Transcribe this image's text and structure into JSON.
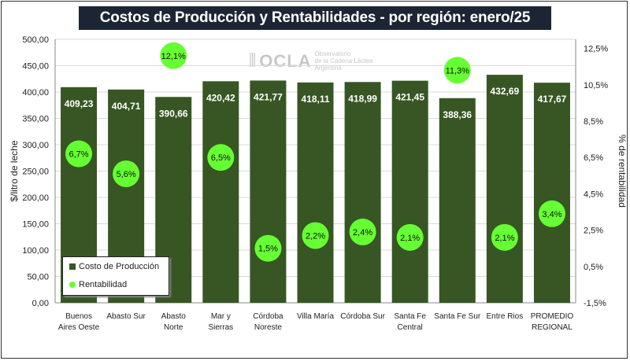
{
  "chart_data": {
    "type": "bar",
    "title": "Costos de Producción y Rentabilidades - por región: enero/25",
    "ylabel": "$/litro de leche",
    "y2label": "% de rentabilidad",
    "categories": [
      [
        "Buenos",
        "Aires Oeste"
      ],
      [
        "Abasto Sur"
      ],
      [
        "Abasto",
        "Norte"
      ],
      [
        "Mar y",
        "Sierras"
      ],
      [
        "Córdoba",
        "Noreste"
      ],
      [
        "Villa María"
      ],
      [
        "Córdoba Sur"
      ],
      [
        "Santa Fe",
        "Central"
      ],
      [
        "Santa Fe Sur"
      ],
      [
        "Entre Rios"
      ],
      [
        "PROMEDIO",
        "REGIONAL"
      ]
    ],
    "series": [
      {
        "name": "Costo de Producción",
        "type": "bar",
        "axis": "left",
        "color": "#375623",
        "values": [
          409.23,
          404.71,
          390.66,
          420.42,
          421.77,
          418.11,
          418.99,
          421.45,
          388.36,
          432.69,
          417.67
        ],
        "labels": [
          "409,23",
          "404,71",
          "390,66",
          "420,42",
          "421,77",
          "418,11",
          "418,99",
          "421,45",
          "388,36",
          "432,69",
          "417,67"
        ]
      },
      {
        "name": "Rentabilidad",
        "type": "scatter",
        "axis": "right",
        "color": "#66ff33",
        "values": [
          6.7,
          5.6,
          12.1,
          6.5,
          1.5,
          2.2,
          2.4,
          2.1,
          11.3,
          2.1,
          3.4
        ],
        "labels": [
          "6,7%",
          "5,6%",
          "12,1%",
          "6,5%",
          "1,5%",
          "2,2%",
          "2,4%",
          "2,1%",
          "11,3%",
          "2,1%",
          "3,4%"
        ]
      }
    ],
    "ylim": [
      0,
      500
    ],
    "y_ticks": [
      "0,00",
      "50,00",
      "100,00",
      "150,00",
      "200,00",
      "250,00",
      "300,00",
      "350,00",
      "400,00",
      "450,00",
      "500,00"
    ],
    "y2lim": [
      -1.5,
      13.0
    ],
    "y2_ticks": [
      "-1,5%",
      "0,5%",
      "2,5%",
      "4,5%",
      "6,5%",
      "8,5%",
      "10,5%",
      "12,5%"
    ],
    "grid": true,
    "legend": "bottom-left"
  },
  "watermark": {
    "logo": "OCLA",
    "line1": "Observatorio",
    "line2": "de la Cadena Láctea",
    "line3": "Argentina"
  }
}
